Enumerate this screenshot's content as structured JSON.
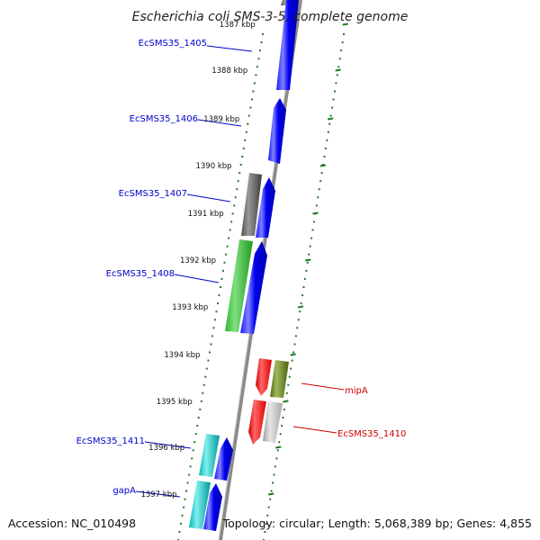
{
  "title": "Escherichia coli SMS-3-5, complete genome",
  "footer": {
    "accession": "Accession: NC_010498",
    "summary": "Topology: circular; Length: 5,068,389 bp; Genes: 4,855"
  },
  "colors": {
    "forward_label": "#0000cc",
    "reverse_label": "#cc0000",
    "backbone": "#8a8a8a",
    "dots": "#1e7b1e"
  },
  "ticks": [
    {
      "label": "1387 kbp"
    },
    {
      "label": "1388 kbp"
    },
    {
      "label": "1389 kbp"
    },
    {
      "label": "1390 kbp"
    },
    {
      "label": "1391 kbp"
    },
    {
      "label": "1392 kbp"
    },
    {
      "label": "1393 kbp"
    },
    {
      "label": "1394 kbp"
    },
    {
      "label": "1395 kbp"
    },
    {
      "label": "1396 kbp"
    },
    {
      "label": "1397 kbp"
    }
  ],
  "gene_labels": [
    {
      "name": "EcSMS35_1405",
      "strand": "forward"
    },
    {
      "name": "EcSMS35_1406",
      "strand": "forward"
    },
    {
      "name": "EcSMS35_1407",
      "strand": "forward"
    },
    {
      "name": "EcSMS35_1408",
      "strand": "forward"
    },
    {
      "name": "EcSMS35_1411",
      "strand": "forward"
    },
    {
      "name": "gapA",
      "strand": "forward"
    },
    {
      "name": "mipA",
      "strand": "reverse"
    },
    {
      "name": "EcSMS35_1410",
      "strand": "reverse"
    }
  ]
}
